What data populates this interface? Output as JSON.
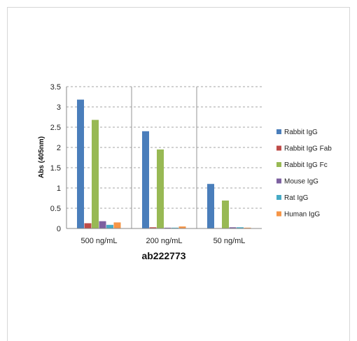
{
  "chart_data": {
    "type": "bar",
    "categories": [
      "500 ng/mL",
      "200 ng/mL",
      "50 ng/mL"
    ],
    "series": [
      {
        "name": "Rabbit IgG",
        "color": "#4a7ebb",
        "values": [
          3.18,
          2.4,
          1.1
        ]
      },
      {
        "name": "Rabbit IgG Fab",
        "color": "#be4b48",
        "values": [
          0.13,
          0.03,
          0.01
        ]
      },
      {
        "name": "Rabbit IgG Fc",
        "color": "#98b954",
        "values": [
          2.68,
          1.95,
          0.69
        ]
      },
      {
        "name": "Mouse IgG",
        "color": "#7d60a0",
        "values": [
          0.18,
          0.02,
          0.03
        ]
      },
      {
        "name": "Rat IgG",
        "color": "#46aac5",
        "values": [
          0.09,
          0.02,
          0.03
        ]
      },
      {
        "name": "Human IgG",
        "color": "#f69546",
        "values": [
          0.15,
          0.05,
          0.02
        ]
      }
    ],
    "xlabel": "ab222773",
    "ylabel": "Abs (405nm)",
    "ylim": [
      0,
      3.5
    ],
    "yticks": [
      "0",
      "0.5",
      "1",
      "1.5",
      "2",
      "2.5",
      "3",
      "3.5"
    ],
    "grid": true,
    "legend": "right"
  }
}
